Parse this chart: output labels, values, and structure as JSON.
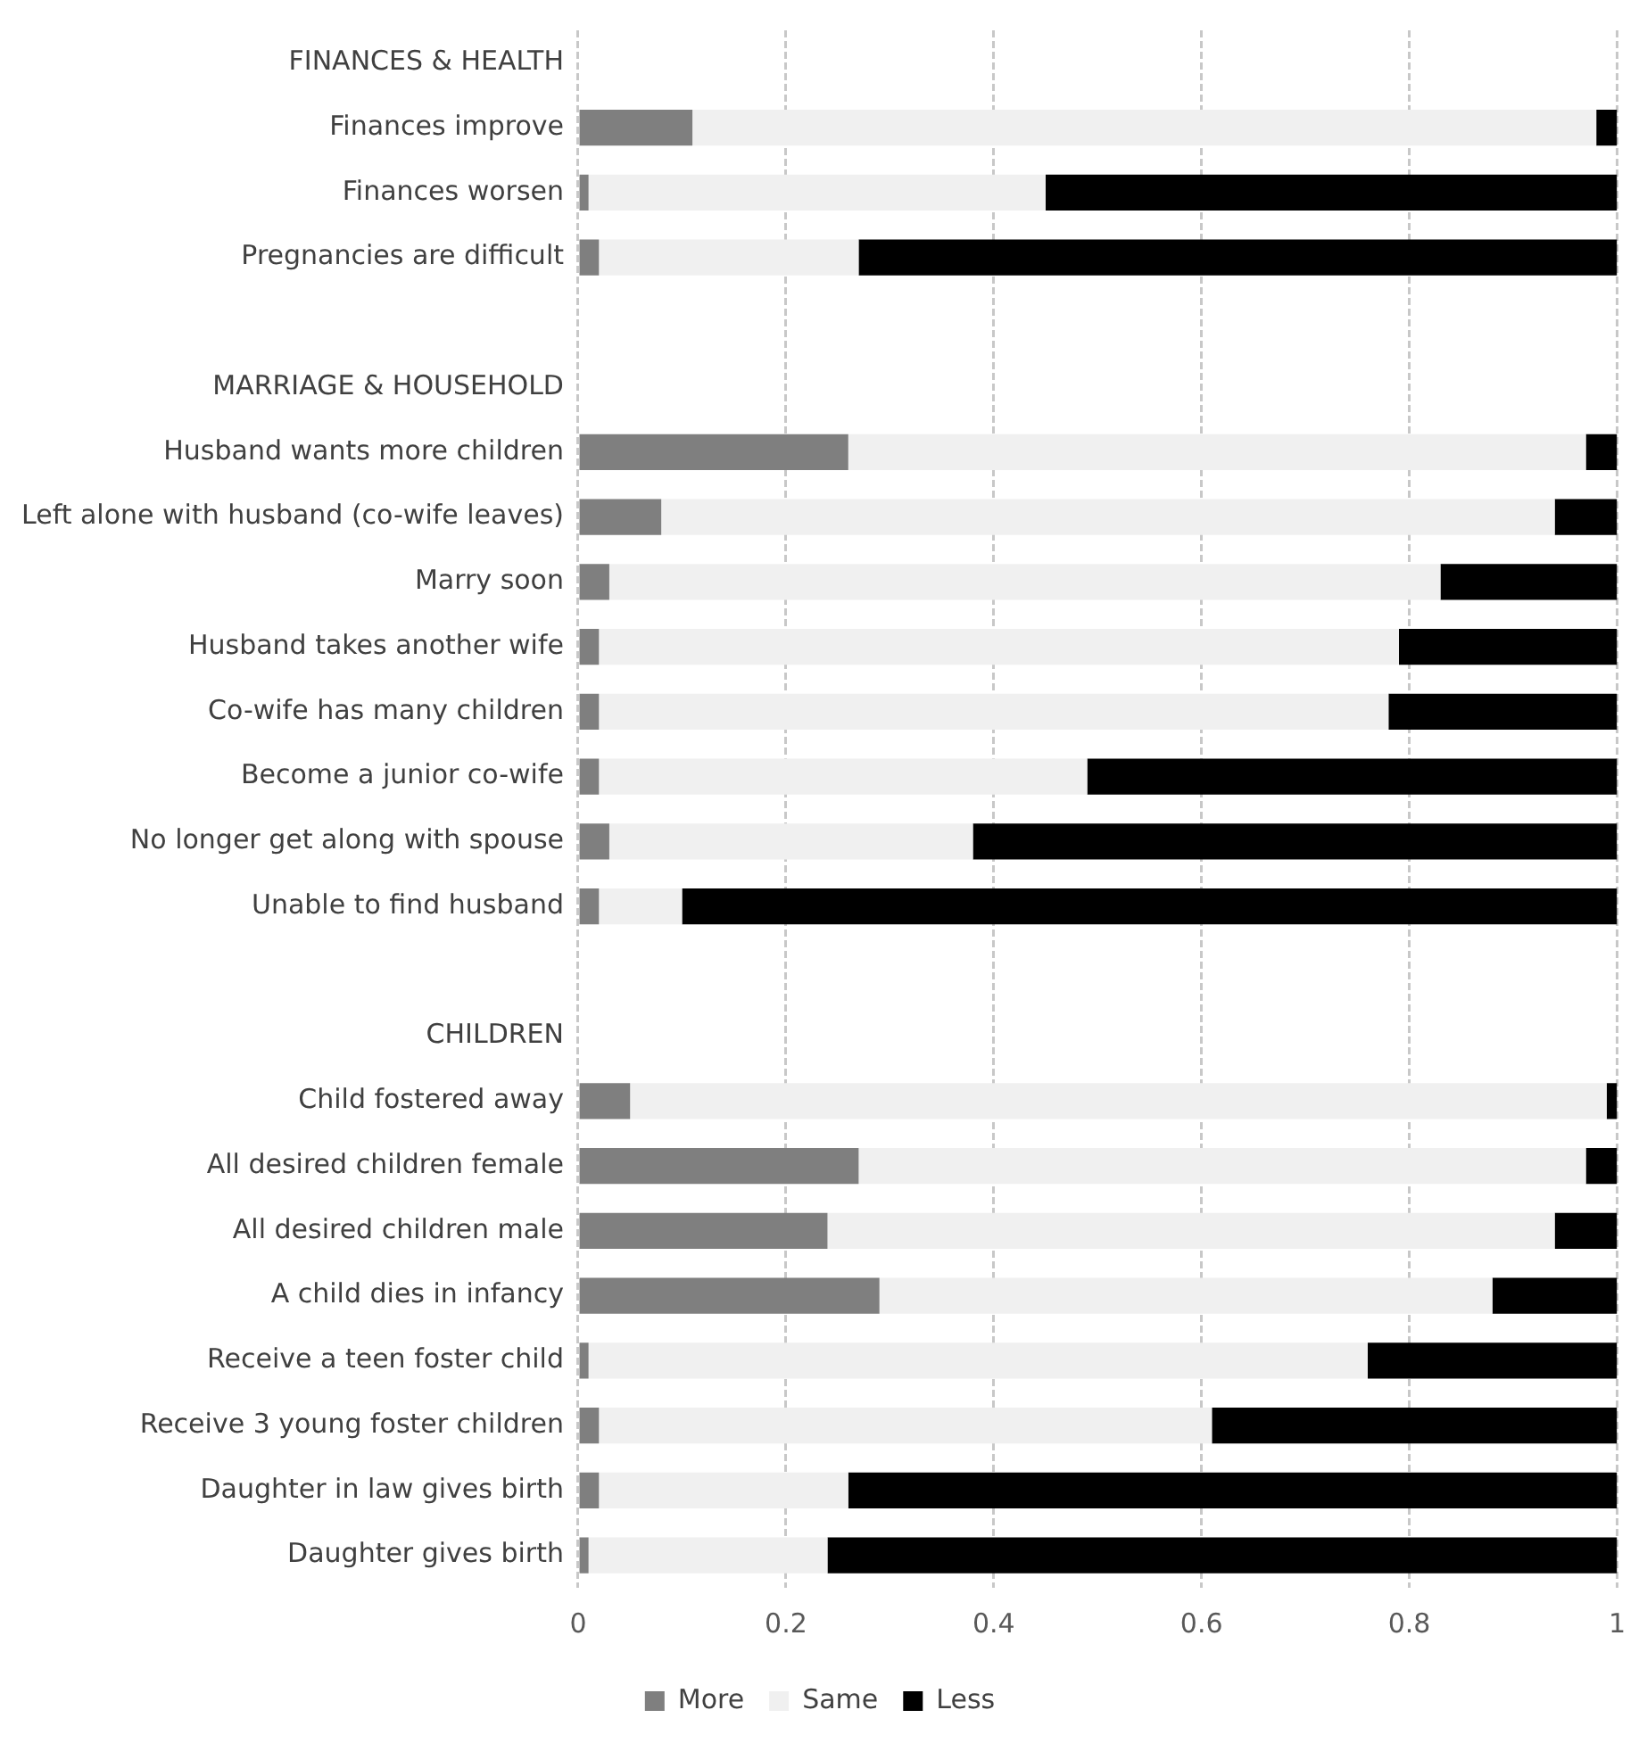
{
  "chart_data": {
    "type": "bar",
    "orientation": "horizontal",
    "stacked": true,
    "categories": [
      "FINANCES & HEALTH",
      "Finances improve",
      "Finances worsen",
      "Pregnancies are difficult",
      null,
      "MARRIAGE & HOUSEHOLD",
      "Husband wants more children",
      "Left alone with husband (co-wife leaves)",
      "Marry soon",
      "Husband takes another wife",
      "Co-wife has many children",
      "Become a junior co-wife",
      "No longer get along with spouse",
      "Unable to find husband",
      null,
      "CHILDREN",
      "Child fostered away",
      "All desired children female",
      "All desired children male",
      "A child dies in infancy",
      "Receive a teen foster child",
      "Receive 3 young foster children",
      "Daughter in law gives birth",
      "Daughter gives birth"
    ],
    "series": [
      {
        "name": "More",
        "color": "#7f7f7f",
        "values": [
          null,
          0.11,
          0.01,
          0.02,
          null,
          null,
          0.26,
          0.08,
          0.03,
          0.02,
          0.02,
          0.02,
          0.03,
          0.02,
          null,
          null,
          0.05,
          0.27,
          0.24,
          0.29,
          0.01,
          0.02,
          0.02,
          0.01
        ]
      },
      {
        "name": "Same",
        "color": "#f0f0f0",
        "values": [
          null,
          0.87,
          0.44,
          0.25,
          null,
          null,
          0.71,
          0.86,
          0.8,
          0.77,
          0.76,
          0.47,
          0.35,
          0.08,
          null,
          null,
          0.94,
          0.7,
          0.7,
          0.59,
          0.75,
          0.59,
          0.24,
          0.23
        ]
      },
      {
        "name": "Less",
        "color": "#000000",
        "values": [
          null,
          0.02,
          0.55,
          0.73,
          null,
          null,
          0.03,
          0.06,
          0.17,
          0.21,
          0.22,
          0.51,
          0.62,
          0.9,
          null,
          null,
          0.01,
          0.03,
          0.06,
          0.12,
          0.24,
          0.39,
          0.74,
          0.76
        ]
      }
    ],
    "xlim": [
      0,
      1
    ],
    "xticks": [
      0,
      0.2,
      0.4,
      0.6,
      0.8,
      1
    ],
    "grid": "x",
    "legend": "bottom"
  }
}
